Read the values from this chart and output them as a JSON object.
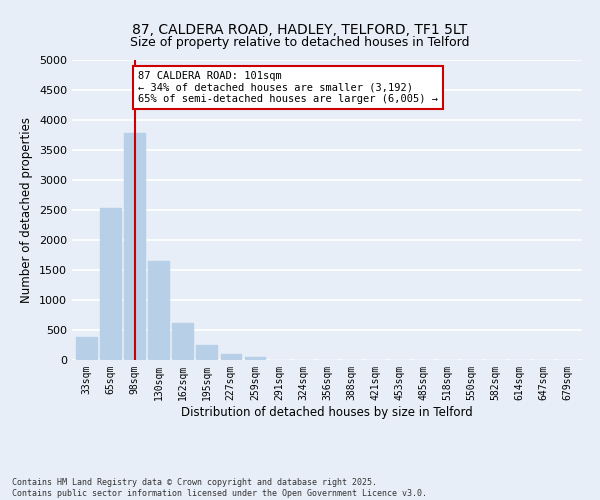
{
  "title": "87, CALDERA ROAD, HADLEY, TELFORD, TF1 5LT",
  "subtitle": "Size of property relative to detached houses in Telford",
  "xlabel": "Distribution of detached houses by size in Telford",
  "ylabel": "Number of detached properties",
  "categories": [
    "33sqm",
    "65sqm",
    "98sqm",
    "130sqm",
    "162sqm",
    "195sqm",
    "227sqm",
    "259sqm",
    "291sqm",
    "324sqm",
    "356sqm",
    "388sqm",
    "421sqm",
    "453sqm",
    "485sqm",
    "518sqm",
    "550sqm",
    "582sqm",
    "614sqm",
    "647sqm",
    "679sqm"
  ],
  "values": [
    390,
    2540,
    3780,
    1650,
    620,
    250,
    100,
    55,
    0,
    0,
    0,
    0,
    0,
    0,
    0,
    0,
    0,
    0,
    0,
    0,
    0
  ],
  "bar_color": "#b8cfe8",
  "vline_x": 2,
  "vline_color": "#cc0000",
  "ylim": [
    0,
    5000
  ],
  "yticks": [
    0,
    500,
    1000,
    1500,
    2000,
    2500,
    3000,
    3500,
    4000,
    4500,
    5000
  ],
  "annotation_title": "87 CALDERA ROAD: 101sqm",
  "annotation_line1": "← 34% of detached houses are smaller (3,192)",
  "annotation_line2": "65% of semi-detached houses are larger (6,005) →",
  "annotation_box_color": "#ffffff",
  "annotation_box_edge": "#cc0000",
  "footer_line1": "Contains HM Land Registry data © Crown copyright and database right 2025.",
  "footer_line2": "Contains public sector information licensed under the Open Government Licence v3.0.",
  "bg_color": "#e8eef8",
  "plot_bg_color": "#e8eef8",
  "grid_color": "#ffffff"
}
